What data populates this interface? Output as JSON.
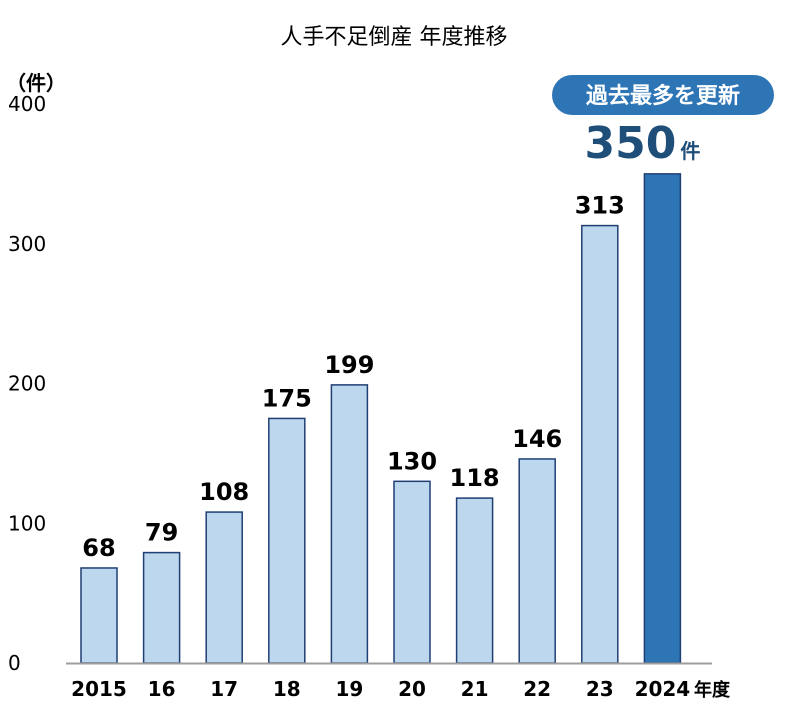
{
  "chart_data": {
    "type": "bar",
    "title": "人手不足倒産 年度推移",
    "ylabel": "（件）",
    "xlabel_suffix": "年度",
    "categories": [
      "2015",
      "16",
      "17",
      "18",
      "19",
      "20",
      "21",
      "22",
      "23",
      "2024"
    ],
    "values": [
      68,
      79,
      108,
      175,
      199,
      130,
      118,
      146,
      313,
      350
    ],
    "data_labels": [
      "68",
      "79",
      "108",
      "175",
      "199",
      "130",
      "118",
      "146",
      "313",
      "350"
    ],
    "highlight_label_unit": "件",
    "ylim": [
      0,
      400
    ],
    "yticks": [
      0,
      100,
      200,
      300,
      400
    ],
    "grid": false,
    "legend": "none",
    "highlight_index": 9,
    "badge_text": "過去最多を更新",
    "colors": {
      "bar": "#bdd7ee",
      "bar_highlight": "#2e75b6",
      "bar_stroke": "#1f3f73",
      "badge_bg": "#2e75b6",
      "badge_text": "#ffffff",
      "highlight_text": "#1f4e79",
      "text": "#000000",
      "axis": "#9e9e9e"
    }
  }
}
